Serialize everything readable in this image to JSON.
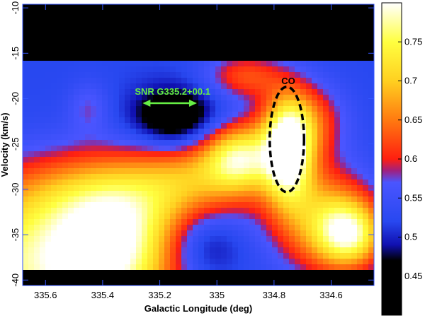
{
  "chart_data": {
    "type": "heatmap",
    "xlabel": "Galactic Longitude (deg)",
    "ylabel": "Velocity (km/s)",
    "xlim": [
      335.68,
      334.45
    ],
    "ylim": [
      -40.6,
      -9.6
    ],
    "x_ticks": [
      {
        "value": 335.6,
        "label": "335.6"
      },
      {
        "value": 335.4,
        "label": "335.4"
      },
      {
        "value": 335.2,
        "label": "335.2"
      },
      {
        "value": 335.0,
        "label": "335"
      },
      {
        "value": 334.8,
        "label": "334.8"
      },
      {
        "value": 334.6,
        "label": "334.6"
      }
    ],
    "y_ticks": [
      {
        "value": -10,
        "label": "-10"
      },
      {
        "value": -15,
        "label": "-15"
      },
      {
        "value": -20,
        "label": "-20"
      },
      {
        "value": -25,
        "label": "-25"
      },
      {
        "value": -30,
        "label": "-30"
      },
      {
        "value": -35,
        "label": "-35"
      },
      {
        "value": -40,
        "label": "-40"
      }
    ],
    "colorbar": {
      "range": [
        0.4,
        0.8
      ],
      "ticks": [
        {
          "value": 0.45,
          "label": "0.45"
        },
        {
          "value": 0.5,
          "label": "0.5"
        },
        {
          "value": 0.55,
          "label": "0.55"
        },
        {
          "value": 0.6,
          "label": "0.6"
        },
        {
          "value": 0.65,
          "label": "0.65"
        },
        {
          "value": 0.7,
          "label": "0.7"
        },
        {
          "value": 0.75,
          "label": "0.75"
        }
      ],
      "colormap": [
        {
          "v": 0.4,
          "color": "#000000"
        },
        {
          "v": 0.47,
          "color": "#000000"
        },
        {
          "v": 0.49,
          "color": "#1010b0"
        },
        {
          "v": 0.52,
          "color": "#2848f0"
        },
        {
          "v": 0.57,
          "color": "#4a55ff"
        },
        {
          "v": 0.585,
          "color": "#a02080"
        },
        {
          "v": 0.6,
          "color": "#ff1f10"
        },
        {
          "v": 0.65,
          "color": "#ff7a10"
        },
        {
          "v": 0.7,
          "color": "#ffd020"
        },
        {
          "v": 0.75,
          "color": "#ffff40"
        },
        {
          "v": 0.8,
          "color": "#ffffff"
        }
      ]
    },
    "background_level": 0.52,
    "features": [
      {
        "l": 335.62,
        "v": -38.5,
        "sl": 0.3,
        "sv": 6,
        "a": 0.24
      },
      {
        "l": 335.35,
        "v": -36.5,
        "sl": 0.15,
        "sv": 5,
        "a": 0.14
      },
      {
        "l": 335.3,
        "v": -30.5,
        "sl": 0.3,
        "sv": 3.5,
        "a": 0.12
      },
      {
        "l": 335.1,
        "v": -28.5,
        "sl": 0.12,
        "sv": 2.5,
        "a": 0.06
      },
      {
        "l": 334.92,
        "v": -26.5,
        "sl": 0.09,
        "sv": 2.6,
        "a": 0.22
      },
      {
        "l": 334.75,
        "v": -26.0,
        "sl": 0.06,
        "sv": 3.8,
        "a": 0.26
      },
      {
        "l": 334.7,
        "v": -22.5,
        "sl": 0.1,
        "sv": 3,
        "a": 0.12
      },
      {
        "l": 334.62,
        "v": -33.5,
        "sl": 0.12,
        "sv": 4,
        "a": 0.16
      },
      {
        "l": 334.53,
        "v": -35.0,
        "sl": 0.08,
        "sv": 2.5,
        "a": 0.18
      },
      {
        "l": 334.9,
        "v": -17.5,
        "sl": 0.1,
        "sv": 1.8,
        "a": 0.1
      },
      {
        "l": 335.15,
        "v": -22.0,
        "sl": 0.1,
        "sv": 2.2,
        "a": -0.11
      },
      {
        "l": 335.05,
        "v": -36.0,
        "sl": 0.1,
        "sv": 3,
        "a": -0.08
      },
      {
        "l": 335.45,
        "v": -21.0,
        "sl": 0.05,
        "sv": 2,
        "a": 0.05
      }
    ],
    "black_regions": {
      "top_velocity_above": -16.0,
      "bottom_velocity_below": -39.0
    },
    "annotations": {
      "snr_label": "SNR G335.2+00.1",
      "snr_arrow": {
        "l_start": 335.26,
        "l_end": 335.07,
        "v": -20.5
      },
      "co_label": "CO",
      "co_ellipse": {
        "l_center": 334.755,
        "v_center": -24.5,
        "half_width_l": 0.06,
        "half_height_v": 5.8
      }
    }
  }
}
